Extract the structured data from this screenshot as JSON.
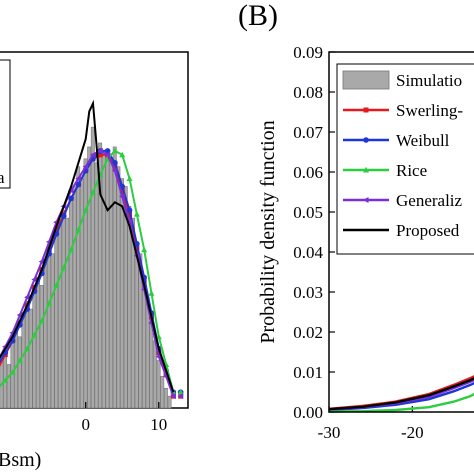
{
  "panel_labels": [
    "(B)"
  ],
  "colors": {
    "histogram": "#a9a9a9",
    "swerling": "#e41a1c",
    "weibull": "#1f36d6",
    "rice": "#2ecc40",
    "generalized": "#7b2fd6",
    "proposed": "#000000"
  },
  "chart_data": [
    {
      "panel": "left (cropped)",
      "type": "bar",
      "xlabel": "Bsm)",
      "x_ticks": [
        "0",
        "10"
      ],
      "legend_fragment": "a",
      "xlim": [
        -12,
        14
      ],
      "ylim": [
        0,
        0.09
      ],
      "histogram": {
        "x": [
          -11.5,
          -11,
          -10.5,
          -10,
          -9.5,
          -9,
          -8.5,
          -8,
          -7.5,
          -7,
          -6.5,
          -6,
          -5.5,
          -5,
          -4.5,
          -4,
          -3.5,
          -3,
          -2.5,
          -2,
          -1.5,
          -1,
          -0.5,
          0,
          0.5,
          1,
          1.5,
          2,
          2.5,
          3,
          3.5,
          4,
          4.5,
          5,
          5.5,
          6,
          6.5,
          7,
          7.5,
          8,
          8.5,
          9,
          9.5,
          10,
          10.5,
          11,
          11.5
        ],
        "values": [
          0.012,
          0.014,
          0.011,
          0.017,
          0.02,
          0.018,
          0.024,
          0.027,
          0.025,
          0.03,
          0.033,
          0.031,
          0.037,
          0.041,
          0.039,
          0.044,
          0.047,
          0.05,
          0.048,
          0.053,
          0.056,
          0.061,
          0.058,
          0.063,
          0.066,
          0.071,
          0.062,
          0.067,
          0.064,
          0.065,
          0.063,
          0.066,
          0.061,
          0.058,
          0.056,
          0.051,
          0.048,
          0.042,
          0.039,
          0.033,
          0.028,
          0.022,
          0.017,
          0.012,
          0.008,
          0.005,
          0.003
        ]
      },
      "series": [
        {
          "key": "swerling",
          "x": [
            -12,
            -10,
            -8,
            -6,
            -4,
            -2,
            0,
            1,
            2,
            3,
            4,
            6,
            8,
            10,
            12
          ],
          "values": [
            0.01,
            0.017,
            0.026,
            0.035,
            0.045,
            0.053,
            0.06,
            0.063,
            0.064,
            0.064,
            0.061,
            0.049,
            0.032,
            0.014,
            0.003
          ]
        },
        {
          "key": "weibull",
          "x": [
            -12,
            -10,
            -8,
            -6,
            -4,
            -2,
            0,
            1,
            2,
            3,
            4,
            6,
            8,
            10,
            12
          ],
          "values": [
            0.011,
            0.017,
            0.025,
            0.034,
            0.044,
            0.053,
            0.06,
            0.063,
            0.065,
            0.065,
            0.062,
            0.05,
            0.033,
            0.015,
            0.004
          ]
        },
        {
          "key": "rice",
          "x": [
            -12,
            -10,
            -8,
            -6,
            -4,
            -2,
            0,
            2,
            3,
            4,
            5,
            6,
            8,
            10,
            12
          ],
          "values": [
            0.005,
            0.009,
            0.015,
            0.022,
            0.031,
            0.04,
            0.05,
            0.059,
            0.063,
            0.065,
            0.064,
            0.058,
            0.04,
            0.018,
            0.004
          ]
        },
        {
          "key": "generalized",
          "x": [
            -12,
            -10,
            -8,
            -6,
            -4,
            -2,
            0,
            1,
            2,
            3,
            4,
            6,
            8,
            10,
            12
          ],
          "values": [
            0.012,
            0.019,
            0.028,
            0.037,
            0.047,
            0.055,
            0.061,
            0.064,
            0.065,
            0.064,
            0.06,
            0.047,
            0.03,
            0.013,
            0.003
          ]
        },
        {
          "key": "proposed",
          "x": [
            -12,
            -10,
            -8,
            -6,
            -4,
            -2,
            -1,
            0,
            0.5,
            1,
            1.5,
            2,
            3,
            4,
            5,
            6,
            8,
            10,
            12
          ],
          "values": [
            0.012,
            0.018,
            0.026,
            0.035,
            0.046,
            0.056,
            0.062,
            0.068,
            0.075,
            0.077,
            0.066,
            0.054,
            0.05,
            0.052,
            0.051,
            0.046,
            0.031,
            0.015,
            0.004
          ]
        }
      ]
    },
    {
      "panel": "(B)",
      "type": "line",
      "ylabel": "Probability density function",
      "ylim": [
        0,
        0.09
      ],
      "y_ticks": [
        "0.00",
        "0.01",
        "0.02",
        "0.03",
        "0.04",
        "0.05",
        "0.06",
        "0.07",
        "0.08",
        "0.09"
      ],
      "xlim": [
        -30,
        -12
      ],
      "x_ticks": [
        "-30",
        "-20"
      ],
      "legend": {
        "placement": "top-left",
        "entries": [
          {
            "key": "histogram",
            "label": "Simulatio"
          },
          {
            "key": "swerling",
            "label": "Swerling-"
          },
          {
            "key": "weibull",
            "label": "Weibull"
          },
          {
            "key": "rice",
            "label": "Rice"
          },
          {
            "key": "generalized",
            "label": "Generaliz"
          },
          {
            "key": "proposed",
            "label": "Proposed"
          }
        ]
      },
      "series": [
        {
          "key": "swerling",
          "x": [
            -30,
            -26,
            -22,
            -18,
            -15,
            -13,
            -12
          ],
          "values": [
            0.0008,
            0.0015,
            0.0026,
            0.0045,
            0.0068,
            0.0085,
            0.0095
          ]
        },
        {
          "key": "weibull",
          "x": [
            -30,
            -26,
            -22,
            -18,
            -15,
            -13,
            -12
          ],
          "values": [
            0.0005,
            0.001,
            0.0018,
            0.0032,
            0.0052,
            0.0068,
            0.0078
          ]
        },
        {
          "key": "rice",
          "x": [
            -30,
            -26,
            -22,
            -18,
            -15,
            -13,
            -12
          ],
          "values": [
            0.0001,
            0.0002,
            0.0005,
            0.0012,
            0.0026,
            0.004,
            0.0052
          ]
        },
        {
          "key": "generalized",
          "x": [
            -30,
            -26,
            -22,
            -18,
            -15,
            -13,
            -12
          ],
          "values": [
            0.0006,
            0.0012,
            0.0022,
            0.0038,
            0.006,
            0.0076,
            0.0086
          ]
        },
        {
          "key": "proposed",
          "x": [
            -30,
            -26,
            -22,
            -18,
            -15,
            -13,
            -12
          ],
          "values": [
            0.0007,
            0.0013,
            0.0024,
            0.0042,
            0.0064,
            0.008,
            0.009
          ]
        }
      ]
    }
  ]
}
